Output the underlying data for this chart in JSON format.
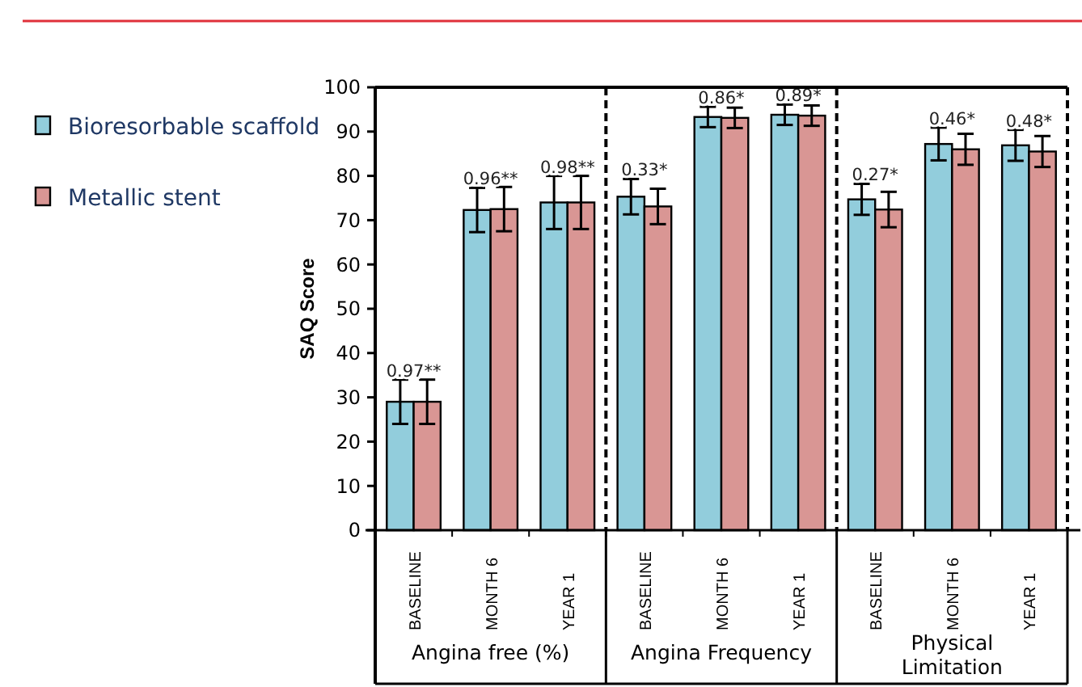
{
  "chart_data": {
    "type": "bar",
    "ylabel": "SAQ Score",
    "categories": [
      "BASELINE",
      "MONTH 6",
      "YEAR 1",
      "BASELINE",
      "MONTH 6",
      "YEAR 1",
      "BASELINE",
      "MONTH 6",
      "YEAR 1"
    ],
    "series": [
      {
        "name": "Bioresorbable scaffold",
        "color": "#92cddc",
        "values": [
          29,
          72.3,
          74,
          75.3,
          93.3,
          93.8,
          74.7,
          87.2,
          86.9
        ],
        "errors": [
          5,
          5,
          6,
          4,
          2.3,
          2.3,
          3.5,
          3.7,
          3.5
        ]
      },
      {
        "name": "Metallic stent",
        "color": "#d99694",
        "values": [
          29,
          72.5,
          74,
          73.1,
          93.1,
          93.6,
          72.4,
          86,
          85.5
        ],
        "errors": [
          5,
          5,
          6,
          4,
          2.3,
          2.3,
          4,
          3.5,
          3.5
        ]
      }
    ],
    "ylim": [
      0,
      100
    ],
    "yticks": [
      0,
      10,
      20,
      30,
      40,
      50,
      60,
      70,
      80,
      90,
      100
    ],
    "annotations": [
      "Angina free (%)",
      "Angina Frequency",
      "Physical Limitation",
      {
        "text": "0.97**",
        "y": 34
      },
      {
        "text": "0.96**",
        "y": 77.3
      },
      {
        "text": "0.98**",
        "y": 80
      },
      {
        "text": "0.33*",
        "y": 79.3
      },
      {
        "text": "0.86*",
        "y": 95.6
      },
      {
        "text": "0.89*",
        "y": 96.1
      },
      {
        "text": "0.27*",
        "y": 78.2
      },
      {
        "text": "0.46*",
        "y": 90.9
      },
      {
        "text": "0.48*",
        "y": 90.4
      }
    ],
    "grid": false,
    "legend": "left"
  }
}
